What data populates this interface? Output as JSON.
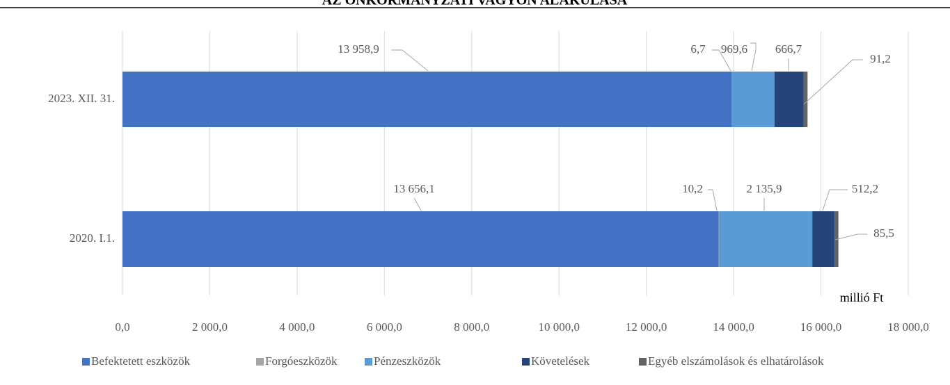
{
  "chart_data": {
    "type": "stacked-barh",
    "title": "AZ ÖNKORMÁNYZATI VAGYON ALAKULÁSA",
    "categories": [
      "2023. XII. 31.",
      "2020. I.1."
    ],
    "series": [
      {
        "name": "Befektetett eszközök",
        "color": "#4472c4",
        "values": [
          13958.9,
          13656.1
        ],
        "value_labels": [
          "13 958,9",
          "13 656,1"
        ]
      },
      {
        "name": "Forgóeszközök",
        "color": "#a5a5a5",
        "values": [
          6.7,
          10.2
        ],
        "value_labels": [
          "6,7",
          "10,2"
        ]
      },
      {
        "name": "Pénzeszközök",
        "color": "#5b9bd5",
        "values": [
          969.6,
          2135.9
        ],
        "value_labels": [
          "969,6",
          "2 135,9"
        ]
      },
      {
        "name": "Követelések",
        "color": "#264478",
        "values": [
          666.7,
          512.2
        ],
        "value_labels": [
          "666,7",
          "512,2"
        ]
      },
      {
        "name": "Egyéb elszámolások és elhatárolások",
        "color": "#636363",
        "values": [
          91.2,
          85.5
        ],
        "value_labels": [
          "91,2",
          "85,5"
        ]
      }
    ],
    "xlim": [
      0,
      18000
    ],
    "xticks": [
      {
        "value": 0,
        "label": "0,0"
      },
      {
        "value": 2000,
        "label": "2 000,0"
      },
      {
        "value": 4000,
        "label": "4 000,0"
      },
      {
        "value": 6000,
        "label": "6 000,0"
      },
      {
        "value": 8000,
        "label": "8 000,0"
      },
      {
        "value": 10000,
        "label": "10 000,0"
      },
      {
        "value": 12000,
        "label": "12 000,0"
      },
      {
        "value": 14000,
        "label": "14 000,0"
      },
      {
        "value": 16000,
        "label": "16 000,0"
      },
      {
        "value": 18000,
        "label": "18 000,0"
      }
    ],
    "x_unit_label": "millió Ft",
    "grid": true,
    "legend": "bottom"
  }
}
